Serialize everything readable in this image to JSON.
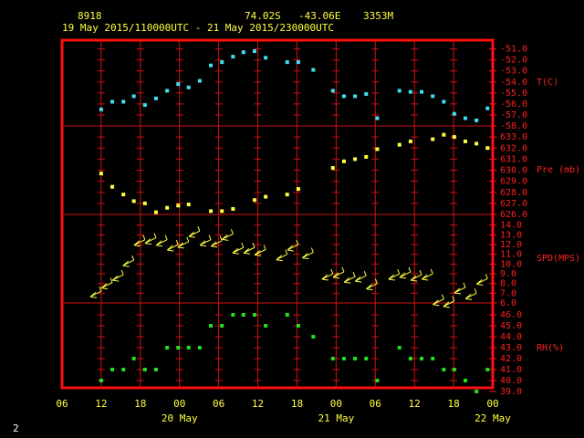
{
  "header": {
    "station": "8918",
    "lat": "74.02S",
    "lon": "-43.06E",
    "elev": "3353M",
    "period": "19 May 2015/110000UTC - 21 May 2015/230000UTC",
    "page": "2"
  },
  "chart_data": [
    {
      "type": "scatter",
      "label": "T(C)",
      "color": "#40e0f0",
      "x": [
        6.0,
        7.7,
        9.4,
        11.0,
        12.7,
        14.4,
        16.1,
        17.8,
        19.4,
        21.1,
        22.8,
        24.5,
        26.2,
        27.8,
        29.5,
        31.2,
        32.9,
        34.5,
        36.2,
        38.5,
        41.5,
        43.2,
        44.9,
        46.6,
        48.3,
        51.7,
        53.4,
        55.1,
        56.8,
        58.5,
        60.1,
        61.8,
        63.5,
        65.2
      ],
      "values": [
        -56.5,
        -55.8,
        -55.8,
        -55.3,
        -56.1,
        -55.5,
        -54.8,
        -54.2,
        -54.5,
        -53.9,
        -52.5,
        -52.2,
        -51.7,
        -51.3,
        -51.2,
        -51.8,
        null,
        -52.2,
        -52.2,
        -52.9,
        -54.8,
        -55.3,
        -55.3,
        -55.1,
        -57.3,
        -54.8,
        -54.9,
        -54.9,
        -55.3,
        -55.8,
        -56.9,
        -57.3,
        -57.5,
        -56.4
      ],
      "xlim": [
        0,
        66
      ],
      "ylim": [
        -58,
        -50.2
      ],
      "yticks": [
        {
          "value": -51,
          "label": "-51.0"
        },
        {
          "value": -52,
          "label": "-52.0"
        },
        {
          "value": -53,
          "label": "-53.0"
        },
        {
          "value": -54,
          "label": "-54.0"
        },
        {
          "value": -55,
          "label": "-55.0"
        },
        {
          "value": -56,
          "label": "-56.0"
        },
        {
          "value": -57,
          "label": "-57.0"
        },
        {
          "value": -58,
          "label": "-58.0"
        }
      ]
    },
    {
      "type": "scatter",
      "label": "Pre (mb)",
      "color": "#ffff40",
      "x": [
        6.0,
        7.7,
        9.4,
        11.0,
        12.7,
        14.4,
        16.1,
        17.8,
        19.4,
        21.1,
        22.8,
        24.5,
        26.2,
        27.8,
        29.5,
        31.2,
        32.9,
        34.5,
        36.2,
        38.5,
        41.5,
        43.2,
        44.9,
        46.6,
        48.3,
        51.7,
        53.4,
        55.1,
        56.8,
        58.5,
        60.1,
        61.8,
        63.5,
        65.2
      ],
      "values": [
        629.7,
        628.5,
        627.8,
        627.2,
        627.0,
        626.2,
        626.6,
        626.8,
        626.9,
        null,
        626.3,
        626.3,
        626.5,
        null,
        627.3,
        627.6,
        null,
        627.8,
        628.3,
        null,
        630.2,
        630.8,
        631.0,
        631.2,
        631.9,
        632.3,
        632.6,
        null,
        632.8,
        633.2,
        633.0,
        632.6,
        632.4,
        632.0
      ],
      "xlim": [
        0,
        66
      ],
      "ylim": [
        626,
        634
      ],
      "yticks": [
        {
          "value": 633,
          "label": "633.0"
        },
        {
          "value": 632,
          "label": "632.0"
        },
        {
          "value": 631,
          "label": "631.0"
        },
        {
          "value": 630,
          "label": "630.0"
        },
        {
          "value": 629,
          "label": "629.0"
        },
        {
          "value": 628,
          "label": "628.0"
        },
        {
          "value": 627,
          "label": "627.0"
        },
        {
          "value": 626,
          "label": "626.0"
        }
      ]
    },
    {
      "type": "wind",
      "label": "SPD(MPS)",
      "color": "#ffff40",
      "x": [
        6.0,
        7.7,
        9.4,
        11.0,
        12.7,
        14.4,
        16.1,
        17.8,
        19.4,
        21.1,
        22.8,
        24.5,
        26.2,
        27.8,
        29.5,
        31.2,
        32.9,
        34.5,
        36.2,
        38.5,
        41.5,
        43.2,
        44.9,
        46.6,
        48.3,
        51.7,
        53.4,
        55.1,
        56.8,
        58.5,
        60.1,
        61.8,
        63.5,
        65.2
      ],
      "values": [
        7.2,
        8.1,
        8.9,
        10.4,
        12.5,
        12.7,
        12.5,
        12.0,
        12.3,
        13.4,
        12.5,
        12.4,
        13.1,
        11.7,
        11.7,
        11.5,
        null,
        11.0,
        12.0,
        11.2,
        9.0,
        9.2,
        8.7,
        8.8,
        8.0,
        9.0,
        9.2,
        8.9,
        9.0,
        6.4,
        6.2,
        7.6,
        7.0,
        8.5
      ],
      "xlim": [
        0,
        66
      ],
      "ylim": [
        6,
        15.1
      ],
      "yticks": [
        {
          "value": 14,
          "label": "14.0"
        },
        {
          "value": 13,
          "label": "13.0"
        },
        {
          "value": 12,
          "label": "12.0"
        },
        {
          "value": 11,
          "label": "11.0"
        },
        {
          "value": 10,
          "label": "10.0"
        },
        {
          "value": 9,
          "label": "9.0"
        },
        {
          "value": 8,
          "label": "8.0"
        },
        {
          "value": 7,
          "label": "7.0"
        },
        {
          "value": 6,
          "label": "6.0"
        }
      ]
    },
    {
      "type": "scatter",
      "label": "RH(%)",
      "color": "#20e020",
      "x": [
        6.0,
        7.7,
        9.4,
        11.0,
        12.7,
        14.4,
        16.1,
        17.8,
        19.4,
        21.1,
        22.8,
        24.5,
        26.2,
        27.8,
        29.5,
        31.2,
        32.9,
        34.5,
        36.2,
        38.5,
        41.5,
        43.2,
        44.9,
        46.6,
        48.3,
        51.7,
        53.4,
        55.1,
        56.8,
        58.5,
        60.1,
        61.8,
        63.5,
        65.2
      ],
      "values": [
        40,
        41,
        41,
        42,
        41,
        41,
        43,
        43,
        43,
        43,
        45,
        45,
        46,
        46,
        46,
        45,
        null,
        46,
        45,
        44,
        42,
        42,
        42,
        42,
        40,
        43,
        42,
        42,
        42,
        41,
        41,
        40,
        39,
        41
      ],
      "xlim": [
        0,
        66
      ],
      "ylim": [
        39,
        47
      ],
      "yticks": [
        {
          "value": 46,
          "label": "46.0"
        },
        {
          "value": 45,
          "label": "45.0"
        },
        {
          "value": 44,
          "label": "44.0"
        },
        {
          "value": 43,
          "label": "43.0"
        },
        {
          "value": 42,
          "label": "42.0"
        },
        {
          "value": 41,
          "label": "41.0"
        },
        {
          "value": 40,
          "label": "40.0"
        },
        {
          "value": 39,
          "label": "39.0"
        }
      ],
      "xticks": [
        {
          "value": 0,
          "label": "06"
        },
        {
          "value": 6,
          "label": "12"
        },
        {
          "value": 12,
          "label": "18"
        },
        {
          "value": 18,
          "label": "00"
        },
        {
          "value": 24,
          "label": "06"
        },
        {
          "value": 30,
          "label": "12"
        },
        {
          "value": 36,
          "label": "18"
        },
        {
          "value": 42,
          "label": "00"
        },
        {
          "value": 48,
          "label": "06"
        },
        {
          "value": 54,
          "label": "12"
        },
        {
          "value": 60,
          "label": "18"
        },
        {
          "value": 66,
          "label": "00"
        }
      ],
      "date_ticks": [
        {
          "value": 18,
          "label": "20 May"
        },
        {
          "value": 42,
          "label": "21 May"
        },
        {
          "value": 66,
          "label": "22 May"
        }
      ]
    }
  ]
}
